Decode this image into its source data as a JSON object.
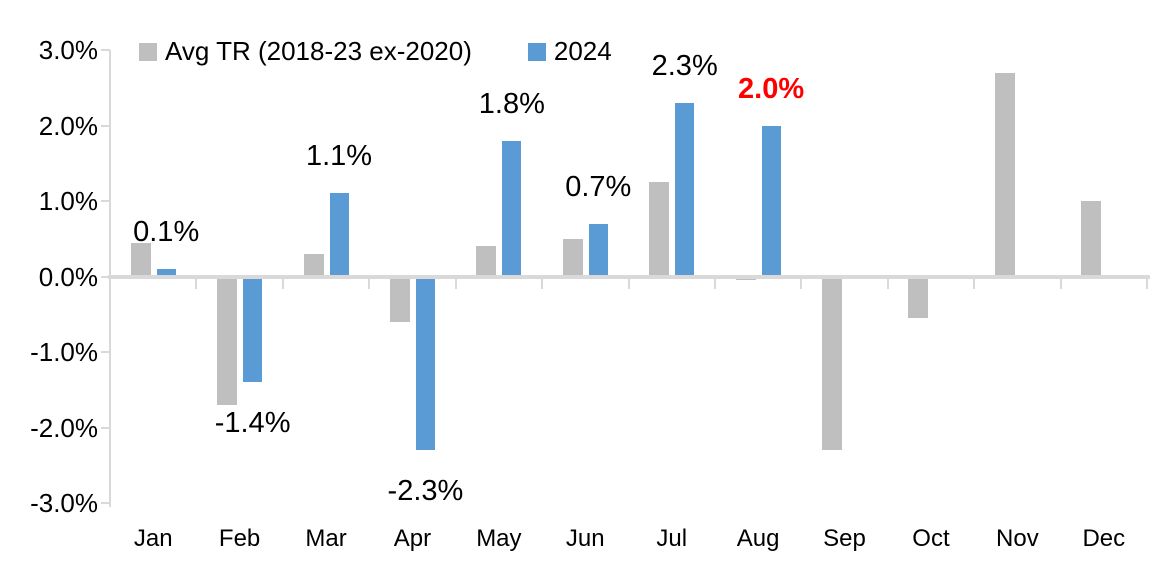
{
  "chart_data": {
    "type": "bar",
    "title": "",
    "xlabel": "",
    "ylabel": "",
    "categories": [
      "Jan",
      "Feb",
      "Mar",
      "Apr",
      "May",
      "Jun",
      "Jul",
      "Aug",
      "Sep",
      "Oct",
      "Nov",
      "Dec"
    ],
    "series": [
      {
        "name": "Avg TR (2018-23 ex-2020)",
        "color": "#BFBFBF",
        "values": [
          0.45,
          -1.7,
          0.3,
          -0.6,
          0.4,
          0.5,
          1.25,
          -0.05,
          -2.3,
          -0.55,
          2.7,
          1.0
        ]
      },
      {
        "name": "2024",
        "color": "#5B9BD5",
        "values": [
          0.1,
          -1.4,
          1.1,
          -2.3,
          1.8,
          0.7,
          2.3,
          2.0,
          null,
          null,
          null,
          null
        ],
        "data_labels": [
          {
            "text": "0.1%",
            "color": "#000000",
            "bold": false
          },
          {
            "text": "-1.4%",
            "color": "#000000",
            "bold": false
          },
          {
            "text": "1.1%",
            "color": "#000000",
            "bold": false
          },
          {
            "text": "-2.3%",
            "color": "#000000",
            "bold": false
          },
          {
            "text": "1.8%",
            "color": "#000000",
            "bold": false
          },
          {
            "text": "0.7%",
            "color": "#000000",
            "bold": false
          },
          {
            "text": "2.3%",
            "color": "#000000",
            "bold": false
          },
          {
            "text": "2.0%",
            "color": "#FF0000",
            "bold": true
          },
          null,
          null,
          null,
          null
        ]
      }
    ],
    "ylim": [
      -3.0,
      3.0
    ],
    "ytick_step": 1.0,
    "ytick_labels": [
      "3.0%",
      "2.0%",
      "1.0%",
      "0.0%",
      "-1.0%",
      "-2.0%",
      "-3.0%"
    ],
    "grid": false,
    "legend_position": "top-left",
    "axis_color": "#D9D9D9",
    "text_color": "#000000",
    "highlight_color": "#FF0000"
  }
}
